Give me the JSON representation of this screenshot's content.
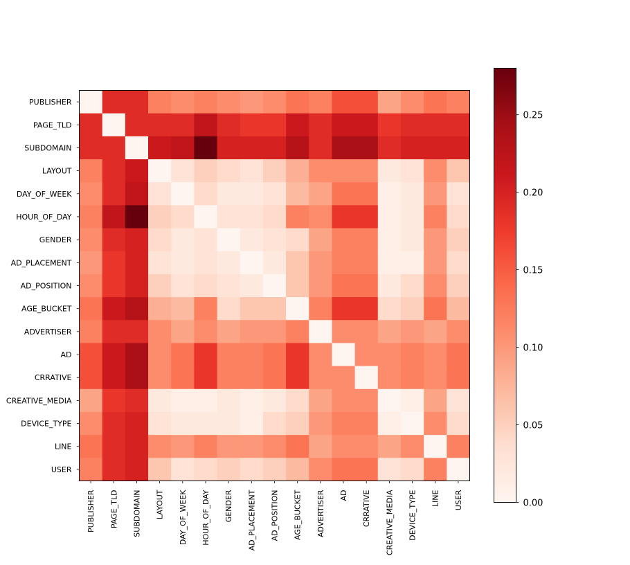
{
  "chart_data": {
    "type": "heatmap",
    "title": "",
    "xlabel": "",
    "ylabel": "",
    "labels": [
      "PUBLISHER",
      "PAGE_TLD",
      "SUBDOMAIN",
      "LAYOUT",
      "DAY_OF_WEEK",
      "HOUR_OF_DAY",
      "GENDER",
      "AD_PLACEMENT",
      "AD_POSITION",
      "AGE_BUCKET",
      "ADVERTISER",
      "AD",
      "CRRATIVE",
      "CREATIVE_MEDIA",
      "DEVICE_TYPE",
      "LINE",
      "USER"
    ],
    "colormap": "Reds",
    "colormap_stops": [
      "#fff5f0",
      "#fee0d2",
      "#fcbba1",
      "#fc9272",
      "#fb6a4a",
      "#ef3b2c",
      "#cb181d",
      "#a50f15",
      "#67000d"
    ],
    "vmin": 0.0,
    "vmax": 0.28,
    "colorbar_ticks": [
      "0.00",
      "0.05",
      "0.10",
      "0.15",
      "0.20",
      "0.25"
    ],
    "colorbar_tick_values": [
      0.0,
      0.05,
      0.1,
      0.15,
      0.2,
      0.25
    ],
    "values": [
      [
        0.0,
        0.19,
        0.19,
        0.12,
        0.11,
        0.12,
        0.11,
        0.1,
        0.11,
        0.13,
        0.12,
        0.16,
        0.16,
        0.09,
        0.11,
        0.13,
        0.12
      ],
      [
        0.19,
        0.0,
        0.19,
        0.19,
        0.19,
        0.22,
        0.19,
        0.18,
        0.18,
        0.21,
        0.19,
        0.21,
        0.21,
        0.18,
        0.19,
        0.19,
        0.19
      ],
      [
        0.19,
        0.19,
        0.0,
        0.21,
        0.22,
        0.28,
        0.2,
        0.2,
        0.2,
        0.23,
        0.19,
        0.24,
        0.24,
        0.19,
        0.2,
        0.2,
        0.2
      ],
      [
        0.12,
        0.19,
        0.21,
        0.0,
        0.03,
        0.05,
        0.04,
        0.03,
        0.05,
        0.08,
        0.11,
        0.11,
        0.11,
        0.02,
        0.03,
        0.11,
        0.06
      ],
      [
        0.11,
        0.19,
        0.22,
        0.03,
        0.0,
        0.04,
        0.02,
        0.02,
        0.03,
        0.07,
        0.09,
        0.13,
        0.13,
        0.01,
        0.02,
        0.1,
        0.03
      ],
      [
        0.12,
        0.22,
        0.28,
        0.05,
        0.04,
        0.0,
        0.03,
        0.03,
        0.04,
        0.12,
        0.11,
        0.18,
        0.18,
        0.01,
        0.02,
        0.12,
        0.04
      ],
      [
        0.11,
        0.19,
        0.2,
        0.04,
        0.02,
        0.03,
        0.0,
        0.02,
        0.03,
        0.04,
        0.09,
        0.12,
        0.12,
        0.01,
        0.02,
        0.1,
        0.05
      ],
      [
        0.1,
        0.18,
        0.2,
        0.03,
        0.02,
        0.03,
        0.02,
        0.0,
        0.02,
        0.06,
        0.1,
        0.12,
        0.12,
        0.01,
        0.01,
        0.1,
        0.04
      ],
      [
        0.11,
        0.18,
        0.2,
        0.05,
        0.03,
        0.04,
        0.03,
        0.02,
        0.0,
        0.06,
        0.1,
        0.13,
        0.13,
        0.02,
        0.04,
        0.11,
        0.05
      ],
      [
        0.13,
        0.21,
        0.23,
        0.08,
        0.07,
        0.12,
        0.04,
        0.06,
        0.06,
        0.0,
        0.12,
        0.18,
        0.18,
        0.04,
        0.05,
        0.13,
        0.07
      ],
      [
        0.12,
        0.19,
        0.19,
        0.11,
        0.09,
        0.11,
        0.09,
        0.1,
        0.1,
        0.12,
        0.0,
        0.11,
        0.11,
        0.09,
        0.1,
        0.09,
        0.11
      ],
      [
        0.16,
        0.21,
        0.24,
        0.11,
        0.13,
        0.18,
        0.12,
        0.12,
        0.13,
        0.18,
        0.11,
        0.0,
        0.11,
        0.11,
        0.12,
        0.11,
        0.13
      ],
      [
        0.16,
        0.21,
        0.24,
        0.11,
        0.13,
        0.18,
        0.12,
        0.12,
        0.13,
        0.18,
        0.11,
        0.11,
        0.0,
        0.11,
        0.12,
        0.11,
        0.13
      ],
      [
        0.09,
        0.18,
        0.19,
        0.02,
        0.01,
        0.01,
        0.02,
        0.01,
        0.02,
        0.04,
        0.09,
        0.11,
        0.11,
        0.0,
        0.01,
        0.09,
        0.03
      ],
      [
        0.11,
        0.19,
        0.2,
        0.03,
        0.02,
        0.02,
        0.02,
        0.01,
        0.04,
        0.05,
        0.1,
        0.12,
        0.12,
        0.01,
        0.0,
        0.11,
        0.04
      ],
      [
        0.13,
        0.19,
        0.2,
        0.11,
        0.1,
        0.12,
        0.1,
        0.1,
        0.11,
        0.13,
        0.09,
        0.11,
        0.11,
        0.09,
        0.11,
        0.0,
        0.12
      ],
      [
        0.12,
        0.19,
        0.2,
        0.06,
        0.03,
        0.04,
        0.05,
        0.04,
        0.05,
        0.07,
        0.11,
        0.13,
        0.13,
        0.03,
        0.04,
        0.12,
        0.0
      ]
    ]
  }
}
